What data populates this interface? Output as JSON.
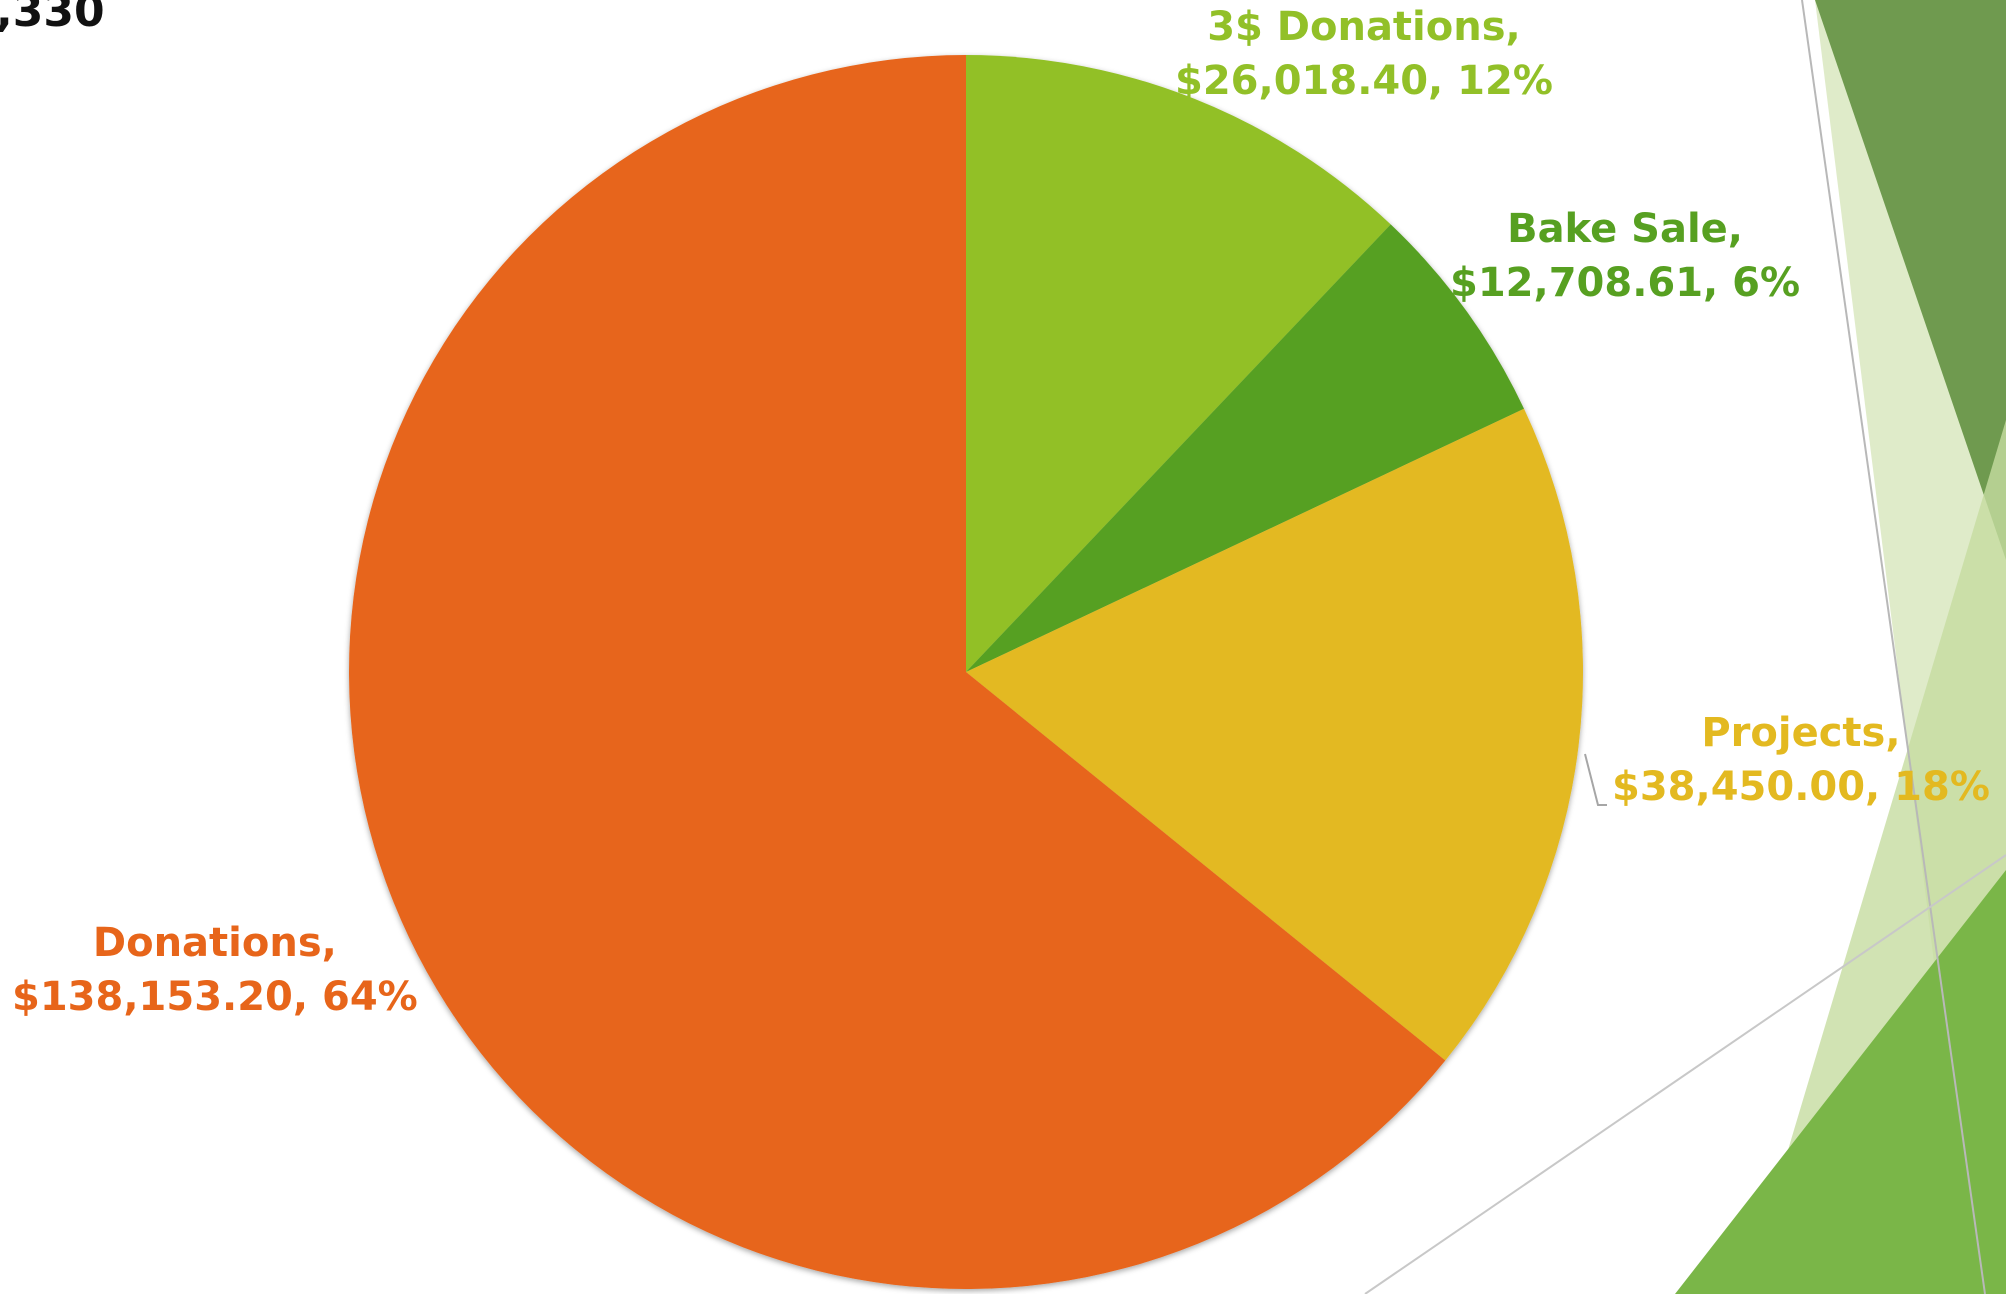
{
  "slide": {
    "corner_text": ",330"
  },
  "theme": {
    "accent_dark_green": "#6f9a4f",
    "accent_light_green": "#dce9c3",
    "accent_mid_green": "#8fbf4a",
    "accent_bright_green": "#7ab648"
  },
  "chart_data": {
    "type": "pie",
    "title": "",
    "start_angle_deg": 0,
    "direction": "clockwise",
    "slices": [
      {
        "category": "3$ Donations",
        "value": 26018.4,
        "percent": 12,
        "label_line1": "3$ Donations,",
        "label_line2": "$26,018.40, 12%",
        "color": "#92c028",
        "label_color": "#92c028"
      },
      {
        "category": "Bake Sale",
        "value": 12708.61,
        "percent": 6,
        "label_line1": "Bake Sale,",
        "label_line2": "$12,708.61, 6%",
        "color": "#57a021",
        "label_color": "#57a021"
      },
      {
        "category": "Projects",
        "value": 38450.0,
        "percent": 18,
        "label_line1": "Projects,",
        "label_line2": "$38,450.00, 18%",
        "color": "#e3b920",
        "label_color": "#e3b920"
      },
      {
        "category": "Donations",
        "value": 138153.2,
        "percent": 64,
        "label_line1": "Donations,",
        "label_line2": "$138,153.20, 64%",
        "color": "#e7651a",
        "label_color": "#e7651a"
      }
    ]
  }
}
